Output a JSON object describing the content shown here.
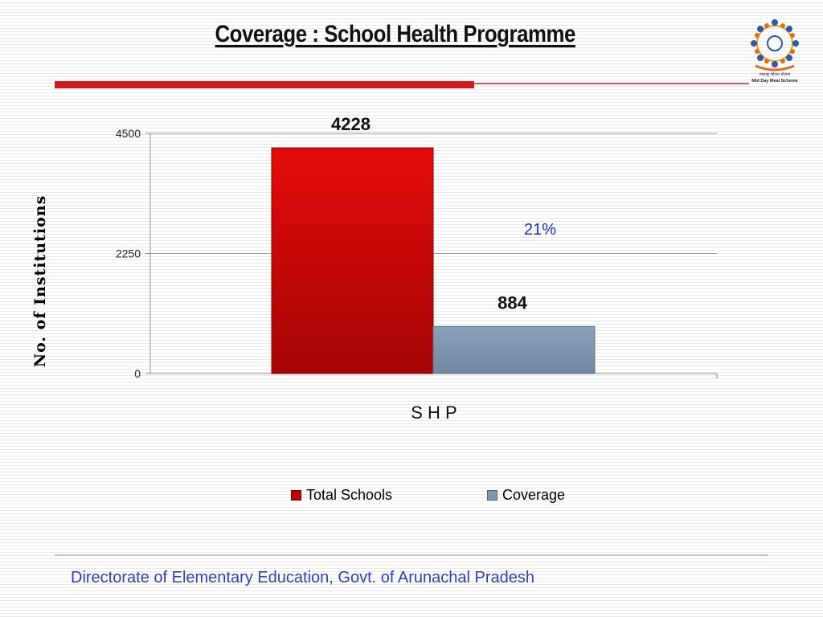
{
  "title": "Coverage : School Health Programme",
  "logo": {
    "text_line1": "मध्याह्न भोजन योजना",
    "text_line2": "Mid Day Meal Scheme"
  },
  "footer": "Directorate of Elementary Education, Govt. of Arunachal Pradesh",
  "colors": {
    "accent_red": "#d21b21",
    "total_schools": "#c00000",
    "coverage": "#7f97ae",
    "annotation_blue": "#1a2bbf"
  },
  "chart_data": {
    "type": "bar",
    "categories": [
      "S H P"
    ],
    "series": [
      {
        "name": "Total Schools",
        "values": [
          4228
        ]
      },
      {
        "name": "Coverage",
        "values": [
          884
        ]
      }
    ],
    "data_labels": [
      "4228",
      "884"
    ],
    "annotation": "21%",
    "xlabel": "S H P",
    "ylabel": "No. of Institutions",
    "yticks": [
      0,
      2250,
      4500
    ],
    "ylim": [
      0,
      4500
    ],
    "grid": true,
    "legend_position": "bottom"
  }
}
